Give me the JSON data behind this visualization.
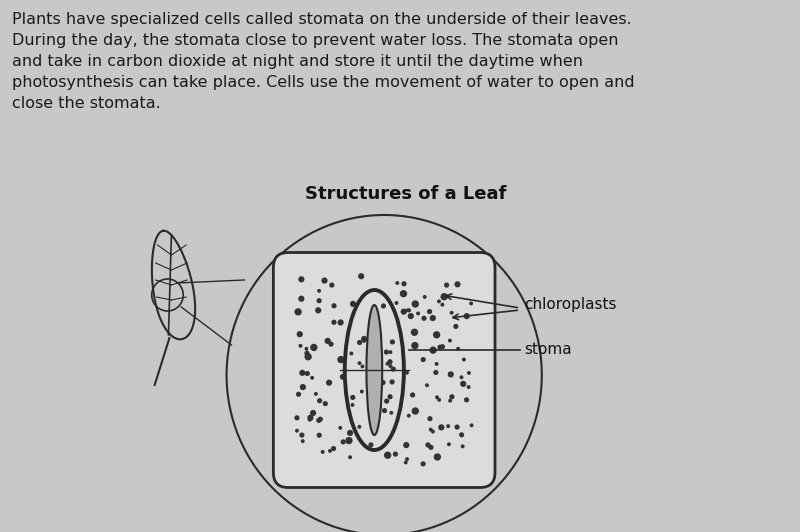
{
  "background_color": "#c8c8c8",
  "title": "Structures of a Leaf",
  "title_fontsize": 13,
  "paragraph_lines": [
    "Plants have specialized cells called stomata on the underside of their leaves.",
    "During the day, the stomata close to prevent water loss. The stomata open",
    "and take in carbon dioxide at night and store it until the daytime when",
    "photosynthesis can take place. Cells use the movement of water to open and",
    "close the stomata."
  ],
  "paragraph_fontsize": 11.5,
  "label_chloroplasts": "chloroplasts",
  "label_stoma": "stoma",
  "label_fontsize": 11,
  "line_color": "#2a2a2a",
  "dot_color": "#333333",
  "fig_width": 8.0,
  "fig_height": 5.32
}
